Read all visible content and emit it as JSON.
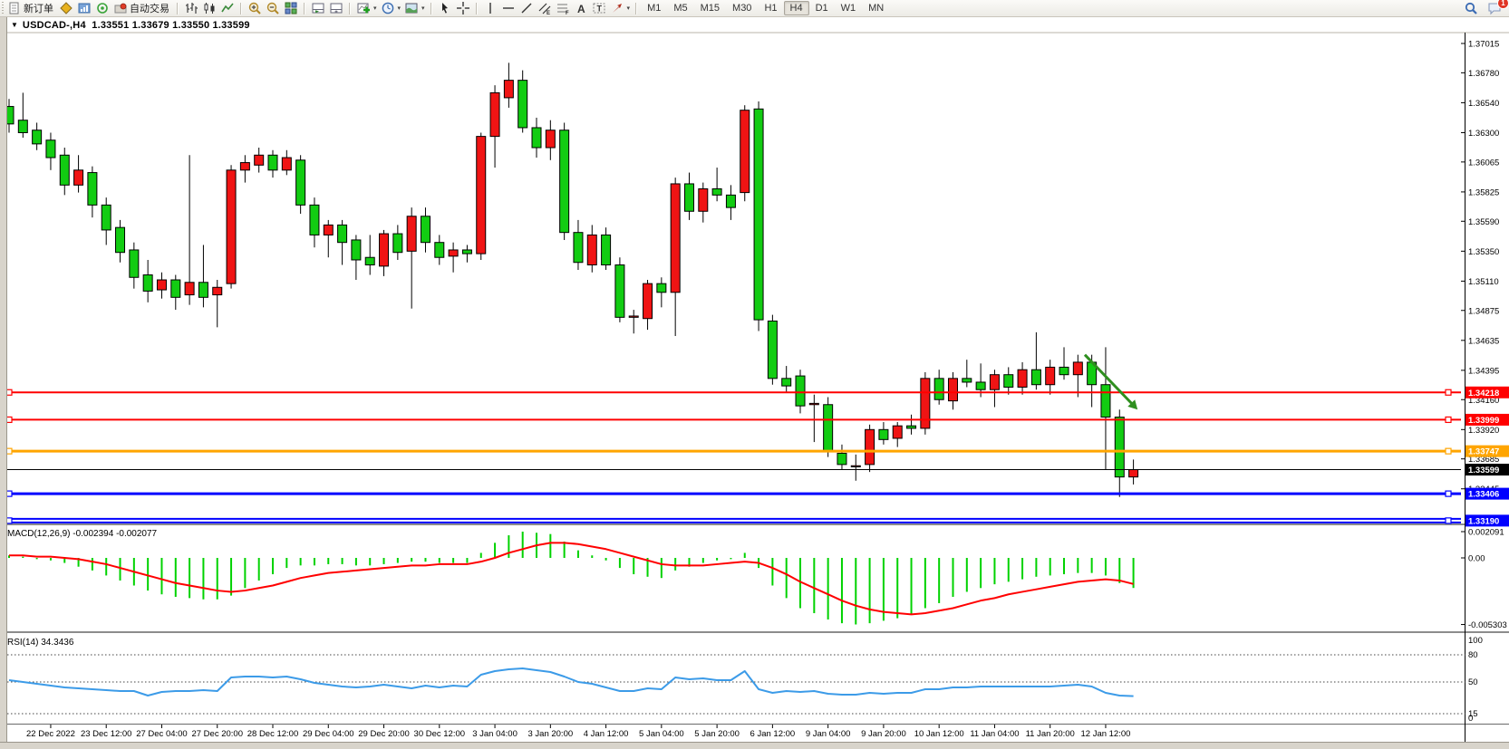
{
  "toolbar": {
    "new_order_label": "新订单",
    "auto_trading_label": "自动交易",
    "left_items": [
      {
        "name": "toolbar-grip",
        "icon": "grip",
        "interactable": false
      },
      {
        "name": "new-order-button",
        "icon": "new-order",
        "label_key": "new_order_label"
      },
      {
        "name": "history-center-button",
        "icon": "gold-cube"
      },
      {
        "name": "market-watch-button",
        "icon": "blue-box"
      },
      {
        "name": "signals-button",
        "icon": "signal"
      },
      {
        "name": "auto-trading-button",
        "icon": "autotrade",
        "label_key": "auto_trading_label"
      },
      {
        "name": "separator",
        "icon": "sep",
        "interactable": false
      },
      {
        "name": "bar-chart-button",
        "icon": "bars"
      },
      {
        "name": "candlestick-chart-button",
        "icon": "candles"
      },
      {
        "name": "line-chart-button",
        "icon": "line"
      },
      {
        "name": "separator",
        "icon": "sep",
        "interactable": false
      },
      {
        "name": "zoom-in-button",
        "icon": "zoom-in"
      },
      {
        "name": "zoom-out-button",
        "icon": "zoom-out"
      },
      {
        "name": "tile-windows-button",
        "icon": "tiles"
      },
      {
        "name": "separator",
        "icon": "sep",
        "interactable": false
      },
      {
        "name": "auto-scroll-button",
        "icon": "panel1"
      },
      {
        "name": "chart-shift-button",
        "icon": "panel2"
      },
      {
        "name": "separator",
        "icon": "sep",
        "interactable": false
      },
      {
        "name": "add-indicator-button",
        "icon": "add-ind",
        "dropdown": true
      },
      {
        "name": "period-button",
        "icon": "clock",
        "dropdown": true
      },
      {
        "name": "template-button",
        "icon": "template",
        "dropdown": true
      },
      {
        "name": "separator",
        "icon": "sep",
        "interactable": false
      },
      {
        "name": "cursor-button",
        "icon": "cursor"
      },
      {
        "name": "crosshair-button",
        "icon": "crosshair"
      },
      {
        "name": "separator",
        "icon": "sep",
        "interactable": false
      },
      {
        "name": "vertical-line-button",
        "icon": "vline"
      },
      {
        "name": "horizontal-line-button",
        "icon": "hline"
      },
      {
        "name": "trendline-button",
        "icon": "trendline"
      },
      {
        "name": "equidistant-channel-button",
        "icon": "channel"
      },
      {
        "name": "fibonacci-button",
        "icon": "fibo"
      },
      {
        "name": "text-button",
        "icon": "textA"
      },
      {
        "name": "text-label-button",
        "icon": "textT"
      },
      {
        "name": "arrows-button",
        "icon": "arrows",
        "dropdown": true
      },
      {
        "name": "separator",
        "icon": "sep",
        "interactable": false
      }
    ],
    "timeframes": [
      "M1",
      "M5",
      "M15",
      "M30",
      "H1",
      "H4",
      "D1",
      "W1",
      "MN"
    ],
    "active_timeframe": "H4",
    "notification_count": "1"
  },
  "chart_window": {
    "symbol_period": "USDCAD-,H4",
    "ohlc": "1.33551 1.33679 1.33550 1.33599"
  },
  "indicators": {
    "macd": {
      "label": "MACD(12,26,9)",
      "value_1": "-0.002394",
      "value_2": "-0.002077",
      "axis_labels": [
        "0.002091",
        "0.00",
        "-0.005303"
      ]
    },
    "rsi": {
      "label": "RSI(14)",
      "value": "34.3436",
      "axis_labels": [
        "100",
        "80",
        "50",
        "15",
        "0"
      ],
      "levels": [
        80,
        50,
        15
      ]
    }
  },
  "chart_data": {
    "type": "candlestick",
    "symbol": "USDCAD",
    "timeframe": "H4",
    "colors": {
      "up_candle": "#F01414",
      "down_candle": "#12CC12",
      "wick": "#000000",
      "macd_histogram": "#00D200",
      "macd_signal": "#FF0000",
      "rsi_line": "#3C9BE8",
      "resistance_line": "#FF0000",
      "orange_line": "#FFA500",
      "support_line": "#0000FF",
      "current_price_line": "#000000",
      "arrow_annotation": "#2F8F1F"
    },
    "price_axis_ticks": [
      "1.37015",
      "1.36780",
      "1.36540",
      "1.36300",
      "1.36065",
      "1.35825",
      "1.35590",
      "1.35350",
      "1.35110",
      "1.34875",
      "1.34635",
      "1.34395",
      "1.34160",
      "1.33920",
      "1.33685",
      "1.33445"
    ],
    "x_labels": [
      "22 Dec 2022",
      "23 Dec 12:00",
      "27 Dec 04:00",
      "27 Dec 20:00",
      "28 Dec 12:00",
      "29 Dec 04:00",
      "29 Dec 20:00",
      "30 Dec 12:00",
      "3 Jan 04:00",
      "3 Jan 20:00",
      "4 Jan 12:00",
      "5 Jan 04:00",
      "5 Jan 20:00",
      "6 Jan 12:00",
      "9 Jan 04:00",
      "9 Jan 20:00",
      "10 Jan 12:00",
      "11 Jan 04:00",
      "11 Jan 20:00",
      "12 Jan 12:00"
    ],
    "x_label_bars": [
      3,
      7,
      11,
      15,
      19,
      23,
      27,
      31,
      35,
      39,
      43,
      47,
      51,
      55,
      59,
      63,
      67,
      71,
      75,
      79
    ],
    "current_price": {
      "value": 1.33599,
      "label": "1.33599"
    },
    "horizontal_lines": [
      {
        "price": 1.34218,
        "label": "1.34218",
        "color": "#FF0000",
        "width": 2
      },
      {
        "price": 1.33999,
        "label": "1.33999",
        "color": "#FF0000",
        "width": 2
      },
      {
        "price": 1.33747,
        "label": "1.33747",
        "color": "#FFA500",
        "width": 3
      },
      {
        "price": 1.33406,
        "label": "1.33406",
        "color": "#0000FF",
        "width": 3
      },
      {
        "price": 1.3319,
        "label": "1.33190",
        "color": "#0000FF",
        "width": 2,
        "double": true
      }
    ],
    "arrow_annotation": {
      "from_bar": 77.5,
      "from_price": 1.3452,
      "to_bar": 81.3,
      "to_price": 1.3408
    },
    "candles": [
      [
        1.3651,
        1.3657,
        1.363,
        1.3637
      ],
      [
        1.364,
        1.3662,
        1.3626,
        1.363
      ],
      [
        1.3632,
        1.3638,
        1.3616,
        1.3621
      ],
      [
        1.3624,
        1.363,
        1.36,
        1.361
      ],
      [
        1.3612,
        1.3618,
        1.358,
        1.3588
      ],
      [
        1.3588,
        1.3612,
        1.3582,
        1.36
      ],
      [
        1.3598,
        1.3603,
        1.3562,
        1.3572
      ],
      [
        1.3572,
        1.3578,
        1.354,
        1.3552
      ],
      [
        1.3554,
        1.356,
        1.3526,
        1.3534
      ],
      [
        1.3536,
        1.3542,
        1.3505,
        1.3514
      ],
      [
        1.3516,
        1.3528,
        1.3494,
        1.3503
      ],
      [
        1.3504,
        1.3518,
        1.3497,
        1.3512
      ],
      [
        1.3512,
        1.3516,
        1.3488,
        1.3498
      ],
      [
        1.35,
        1.3612,
        1.3492,
        1.351
      ],
      [
        1.351,
        1.354,
        1.349,
        1.3498
      ],
      [
        1.35,
        1.3512,
        1.3474,
        1.3506
      ],
      [
        1.3509,
        1.3604,
        1.3505,
        1.36
      ],
      [
        1.36,
        1.3612,
        1.359,
        1.3606
      ],
      [
        1.3604,
        1.3618,
        1.3598,
        1.3612
      ],
      [
        1.3612,
        1.3616,
        1.3594,
        1.36
      ],
      [
        1.36,
        1.3616,
        1.3596,
        1.361
      ],
      [
        1.3608,
        1.3612,
        1.3565,
        1.3572
      ],
      [
        1.3572,
        1.3578,
        1.3538,
        1.3548
      ],
      [
        1.3548,
        1.356,
        1.353,
        1.3556
      ],
      [
        1.3556,
        1.356,
        1.3524,
        1.3542
      ],
      [
        1.3544,
        1.3548,
        1.3512,
        1.3528
      ],
      [
        1.353,
        1.3548,
        1.3516,
        1.3524
      ],
      [
        1.3523,
        1.3552,
        1.3515,
        1.3549
      ],
      [
        1.3549,
        1.3556,
        1.3528,
        1.3534
      ],
      [
        1.3535,
        1.357,
        1.3489,
        1.3563
      ],
      [
        1.3563,
        1.357,
        1.3534,
        1.3542
      ],
      [
        1.3542,
        1.3548,
        1.3524,
        1.353
      ],
      [
        1.3531,
        1.3542,
        1.3518,
        1.3536
      ],
      [
        1.3536,
        1.354,
        1.3526,
        1.3533
      ],
      [
        1.3533,
        1.363,
        1.3528,
        1.3627
      ],
      [
        1.3627,
        1.3668,
        1.3602,
        1.3662
      ],
      [
        1.3658,
        1.3686,
        1.365,
        1.3672
      ],
      [
        1.3672,
        1.368,
        1.363,
        1.3634
      ],
      [
        1.3634,
        1.3642,
        1.361,
        1.3618
      ],
      [
        1.3618,
        1.364,
        1.3608,
        1.3632
      ],
      [
        1.3632,
        1.3638,
        1.3544,
        1.355
      ],
      [
        1.355,
        1.356,
        1.352,
        1.3526
      ],
      [
        1.3524,
        1.3556,
        1.3518,
        1.3548
      ],
      [
        1.3548,
        1.3554,
        1.352,
        1.3524
      ],
      [
        1.3524,
        1.353,
        1.3478,
        1.3482
      ],
      [
        1.3482,
        1.3488,
        1.3469,
        1.3483
      ],
      [
        1.3481,
        1.3512,
        1.3472,
        1.3509
      ],
      [
        1.3509,
        1.3514,
        1.349,
        1.3502
      ],
      [
        1.3502,
        1.3594,
        1.3467,
        1.3589
      ],
      [
        1.3589,
        1.3598,
        1.356,
        1.3567
      ],
      [
        1.3567,
        1.359,
        1.3558,
        1.3585
      ],
      [
        1.3585,
        1.3602,
        1.3575,
        1.358
      ],
      [
        1.358,
        1.3588,
        1.356,
        1.357
      ],
      [
        1.3582,
        1.3652,
        1.3575,
        1.3648
      ],
      [
        1.3649,
        1.3655,
        1.3471,
        1.348
      ],
      [
        1.3479,
        1.3484,
        1.3428,
        1.3433
      ],
      [
        1.3433,
        1.3443,
        1.3422,
        1.3427
      ],
      [
        1.3435,
        1.344,
        1.3405,
        1.3411
      ],
      [
        1.3412,
        1.342,
        1.3382,
        1.3413
      ],
      [
        1.3412,
        1.3418,
        1.337,
        1.3375
      ],
      [
        1.3373,
        1.338,
        1.336,
        1.3364
      ],
      [
        1.3363,
        1.3372,
        1.3351,
        1.3363
      ],
      [
        1.3364,
        1.3396,
        1.3358,
        1.3392
      ],
      [
        1.3392,
        1.3398,
        1.338,
        1.3384
      ],
      [
        1.3385,
        1.3398,
        1.3378,
        1.3395
      ],
      [
        1.3395,
        1.3404,
        1.3388,
        1.3393
      ],
      [
        1.3393,
        1.3438,
        1.3388,
        1.3433
      ],
      [
        1.3433,
        1.344,
        1.3412,
        1.3416
      ],
      [
        1.3415,
        1.3438,
        1.3408,
        1.3433
      ],
      [
        1.3433,
        1.3448,
        1.3426,
        1.343
      ],
      [
        1.343,
        1.3445,
        1.3418,
        1.3424
      ],
      [
        1.3424,
        1.344,
        1.341,
        1.3436
      ],
      [
        1.3436,
        1.3442,
        1.342,
        1.3426
      ],
      [
        1.3426,
        1.3446,
        1.342,
        1.344
      ],
      [
        1.344,
        1.347,
        1.3424,
        1.3428
      ],
      [
        1.3428,
        1.3448,
        1.342,
        1.3442
      ],
      [
        1.3442,
        1.3458,
        1.3432,
        1.3436
      ],
      [
        1.3436,
        1.3452,
        1.3418,
        1.3446
      ],
      [
        1.3446,
        1.3452,
        1.341,
        1.3428
      ],
      [
        1.3428,
        1.3458,
        1.336,
        1.3402
      ],
      [
        1.3402,
        1.3408,
        1.3338,
        1.3354
      ],
      [
        1.3354,
        1.3368,
        1.3348,
        1.33599
      ]
    ],
    "macd_histogram": [
      0.0002,
      0.0001,
      -0.0001,
      -0.0002,
      -0.0004,
      -0.0007,
      -0.001,
      -0.0014,
      -0.0018,
      -0.0022,
      -0.0026,
      -0.0029,
      -0.0031,
      -0.0032,
      -0.0033,
      -0.0033,
      -0.003,
      -0.0024,
      -0.0018,
      -0.0013,
      -0.0008,
      -0.0006,
      -0.0006,
      -0.0005,
      -0.0005,
      -0.0006,
      -0.0006,
      -0.0005,
      -0.0004,
      -0.0003,
      -0.0003,
      -0.0004,
      -0.0004,
      -0.0004,
      0.0004,
      0.0012,
      0.0018,
      0.002091,
      0.002,
      0.0019,
      0.0013,
      0.0006,
      0.0002,
      -0.0002,
      -0.0008,
      -0.0013,
      -0.0015,
      -0.0016,
      -0.001,
      -0.0007,
      -0.0004,
      -0.0002,
      -0.0001,
      0.0004,
      -0.0008,
      -0.0022,
      -0.0032,
      -0.004,
      -0.0044,
      -0.0049,
      -0.0052,
      -0.0053,
      -0.0052,
      -0.005,
      -0.0048,
      -0.0045,
      -0.004,
      -0.0036,
      -0.0031,
      -0.0027,
      -0.0024,
      -0.0021,
      -0.0019,
      -0.0017,
      -0.0015,
      -0.0014,
      -0.0013,
      -0.0012,
      -0.0012,
      -0.0014,
      -0.002,
      -0.002394
    ],
    "macd_signal": [
      0.0002,
      0.0002,
      0.0001,
      0.0001,
      0.0,
      -0.0001,
      -0.0003,
      -0.0005,
      -0.0008,
      -0.0011,
      -0.0014,
      -0.0017,
      -0.002,
      -0.0022,
      -0.0024,
      -0.0026,
      -0.0027,
      -0.0026,
      -0.0024,
      -0.0022,
      -0.0019,
      -0.0016,
      -0.0014,
      -0.0012,
      -0.0011,
      -0.001,
      -0.0009,
      -0.0008,
      -0.0007,
      -0.0006,
      -0.0006,
      -0.0005,
      -0.0005,
      -0.0005,
      -0.0003,
      0.0,
      0.0004,
      0.0007,
      0.001,
      0.0012,
      0.0012,
      0.0011,
      0.0009,
      0.0007,
      0.0004,
      0.0001,
      -0.0002,
      -0.0005,
      -0.0006,
      -0.0006,
      -0.0006,
      -0.0005,
      -0.0004,
      -0.0003,
      -0.0004,
      -0.0008,
      -0.0013,
      -0.0019,
      -0.0024,
      -0.0029,
      -0.0034,
      -0.0038,
      -0.0041,
      -0.0043,
      -0.0044,
      -0.0045,
      -0.0044,
      -0.0042,
      -0.004,
      -0.0037,
      -0.0034,
      -0.0032,
      -0.0029,
      -0.0027,
      -0.0025,
      -0.0023,
      -0.0021,
      -0.0019,
      -0.0018,
      -0.0017,
      -0.0018,
      -0.002077
    ],
    "rsi_values": [
      52,
      50,
      48,
      46,
      44,
      43,
      42,
      41,
      40,
      40,
      35,
      39,
      40,
      40,
      41,
      40,
      55,
      56,
      56,
      55,
      56,
      53,
      49,
      47,
      45,
      44,
      45,
      47,
      45,
      43,
      46,
      44,
      46,
      45,
      58,
      62,
      64,
      65,
      63,
      61,
      56,
      50,
      48,
      44,
      40,
      40,
      43,
      42,
      55,
      53,
      54,
      52,
      52,
      62,
      42,
      38,
      40,
      39,
      40,
      37,
      36,
      36,
      38,
      37,
      38,
      38,
      42,
      42,
      44,
      44,
      45,
      45,
      45,
      45,
      45,
      45,
      46,
      47,
      45,
      38,
      35,
      34.34
    ]
  }
}
